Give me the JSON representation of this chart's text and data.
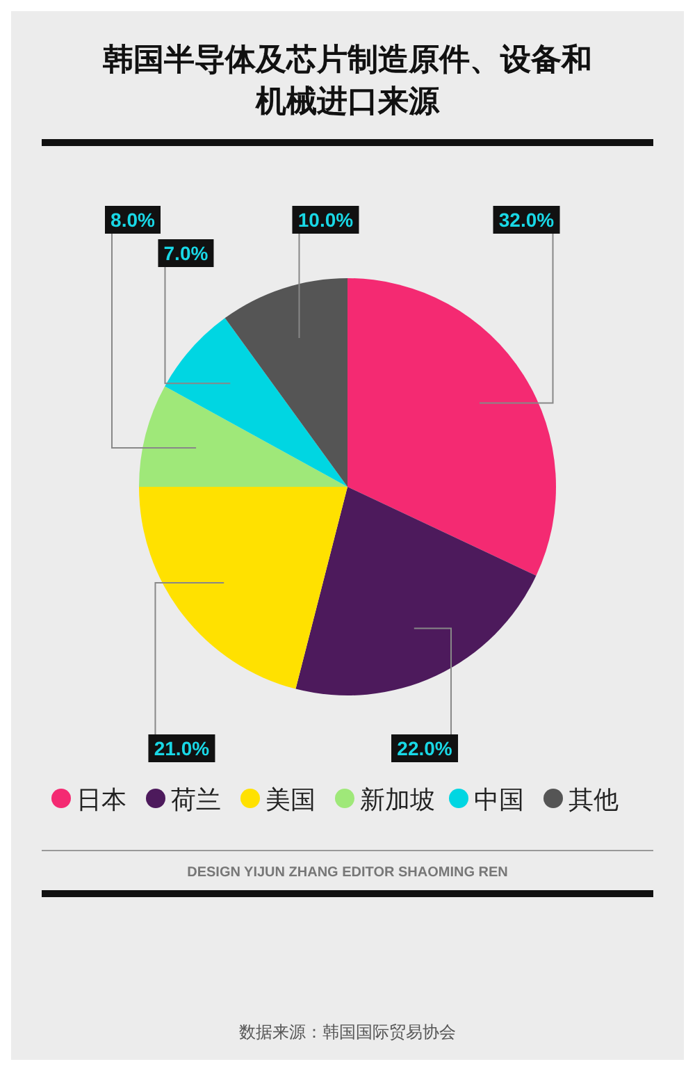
{
  "chart_data": {
    "type": "pie",
    "title": "韩国半导体及芯片制造原件、设备和机械进口来源",
    "categories": [
      "日本",
      "荷兰",
      "美国",
      "新加坡",
      "中国",
      "其他"
    ],
    "values": [
      32,
      22,
      21,
      8,
      7,
      10
    ],
    "value_labels": [
      "32.0%",
      "22.0%",
      "21.0%",
      "8.0%",
      "7.0%",
      "10.0%"
    ],
    "colors": [
      "#f42a72",
      "#4d1a5c",
      "#ffe100",
      "#9fe879",
      "#00d6e2",
      "#555555"
    ],
    "legend": "bottom",
    "annotations": [
      "DESIGN YIJUN ZHANG   EDITOR SHAOMING REN",
      "数据来源：韩国国际贸易协会"
    ]
  }
}
